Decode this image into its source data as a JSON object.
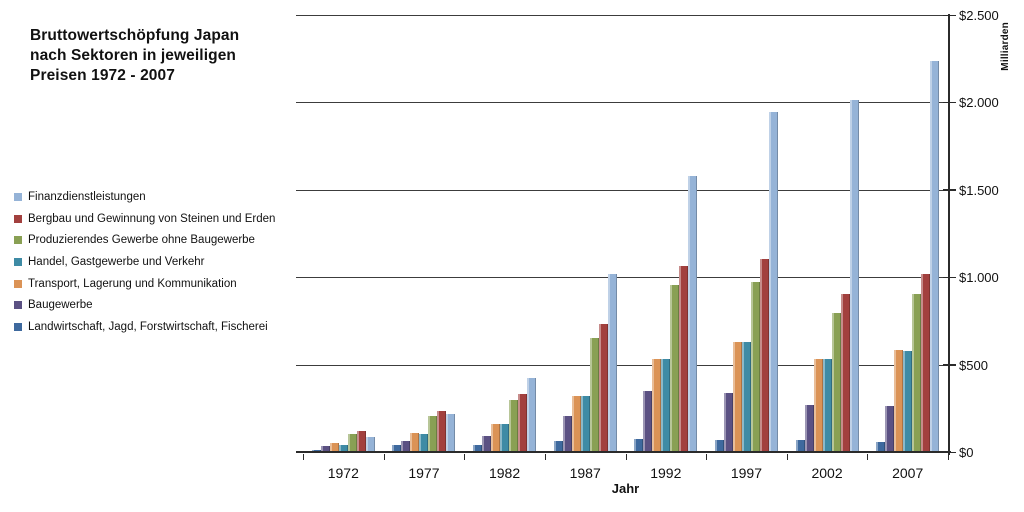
{
  "title": {
    "lines": [
      "Bruttowertschöpfung Japan",
      "nach Sektoren in jeweiligen",
      "Preisen 1972 - 2007"
    ]
  },
  "legend": {
    "position": "left",
    "items": [
      {
        "label": "Finanzdienstleistungen",
        "color": "#95B3D7"
      },
      {
        "label": "Bergbau und Gewinnung von Steinen und Erden",
        "color": "#A2403E"
      },
      {
        "label": "Produzierendes Gewerbe ohne Baugewerbe",
        "color": "#89A054"
      },
      {
        "label": "Handel, Gastgewerbe und Verkehr",
        "color": "#3E8BA5"
      },
      {
        "label": "Transport, Lagerung und Kommunikation",
        "color": "#DB9356"
      },
      {
        "label": "Baugewerbe",
        "color": "#5B5183"
      },
      {
        "label": "Landwirtschaft, Jagd, Forstwirtschaft, Fischerei",
        "color": "#3E699E"
      }
    ]
  },
  "chart_data": {
    "type": "bar",
    "title": "Bruttowertschöpfung Japan nach Sektoren in jeweiligen Preisen 1972 - 2007",
    "categories": [
      "1972",
      "1977",
      "1982",
      "1987",
      "1992",
      "1997",
      "2002",
      "2007"
    ],
    "series": [
      {
        "name": "Finanzdienstleistungen",
        "color": "#95B3D7",
        "values": [
          93,
          226,
          429,
          1025,
          1587,
          1950,
          2020,
          2240
        ]
      },
      {
        "name": "Bergbau und Gewinnung von Steinen und Erden",
        "color": "#A2403E",
        "values": [
          125,
          238,
          337,
          737,
          1068,
          1108,
          912,
          1025
        ]
      },
      {
        "name": "Produzierendes Gewerbe ohne Baugewerbe",
        "color": "#89A054",
        "values": [
          108,
          209,
          304,
          656,
          960,
          979,
          802,
          912
        ]
      },
      {
        "name": "Handel, Gastgewerbe und Verkehr",
        "color": "#3E8BA5",
        "values": [
          45,
          108,
          167,
          327,
          538,
          635,
          536,
          584
        ]
      },
      {
        "name": "Transport, Lagerung und Kommunikation",
        "color": "#DB9356",
        "values": [
          55,
          112,
          167,
          327,
          538,
          635,
          540,
          587
        ]
      },
      {
        "name": "Baugewerbe",
        "color": "#5B5183",
        "values": [
          38,
          68,
          95,
          212,
          352,
          346,
          274,
          270
        ]
      },
      {
        "name": "Landwirtschaft, Jagd, Forstwirtschaft, Fischerei",
        "color": "#3E699E",
        "values": [
          20,
          45,
          48,
          67,
          83,
          74,
          72,
          65
        ]
      }
    ],
    "bar_draw_order": "reverse_of_legend",
    "xlabel": "Jahr",
    "ylabel": "Milliarden",
    "ylim": [
      0,
      2500
    ],
    "yticks": [
      {
        "value": 0,
        "label": "$0"
      },
      {
        "value": 500,
        "label": "$500"
      },
      {
        "value": 1000,
        "label": "$1.000"
      },
      {
        "value": 1500,
        "label": "$1.500"
      },
      {
        "value": 2000,
        "label": "$2.000"
      },
      {
        "value": 2500,
        "label": "$2.500"
      }
    ],
    "grid": true,
    "legend_position": "left"
  }
}
